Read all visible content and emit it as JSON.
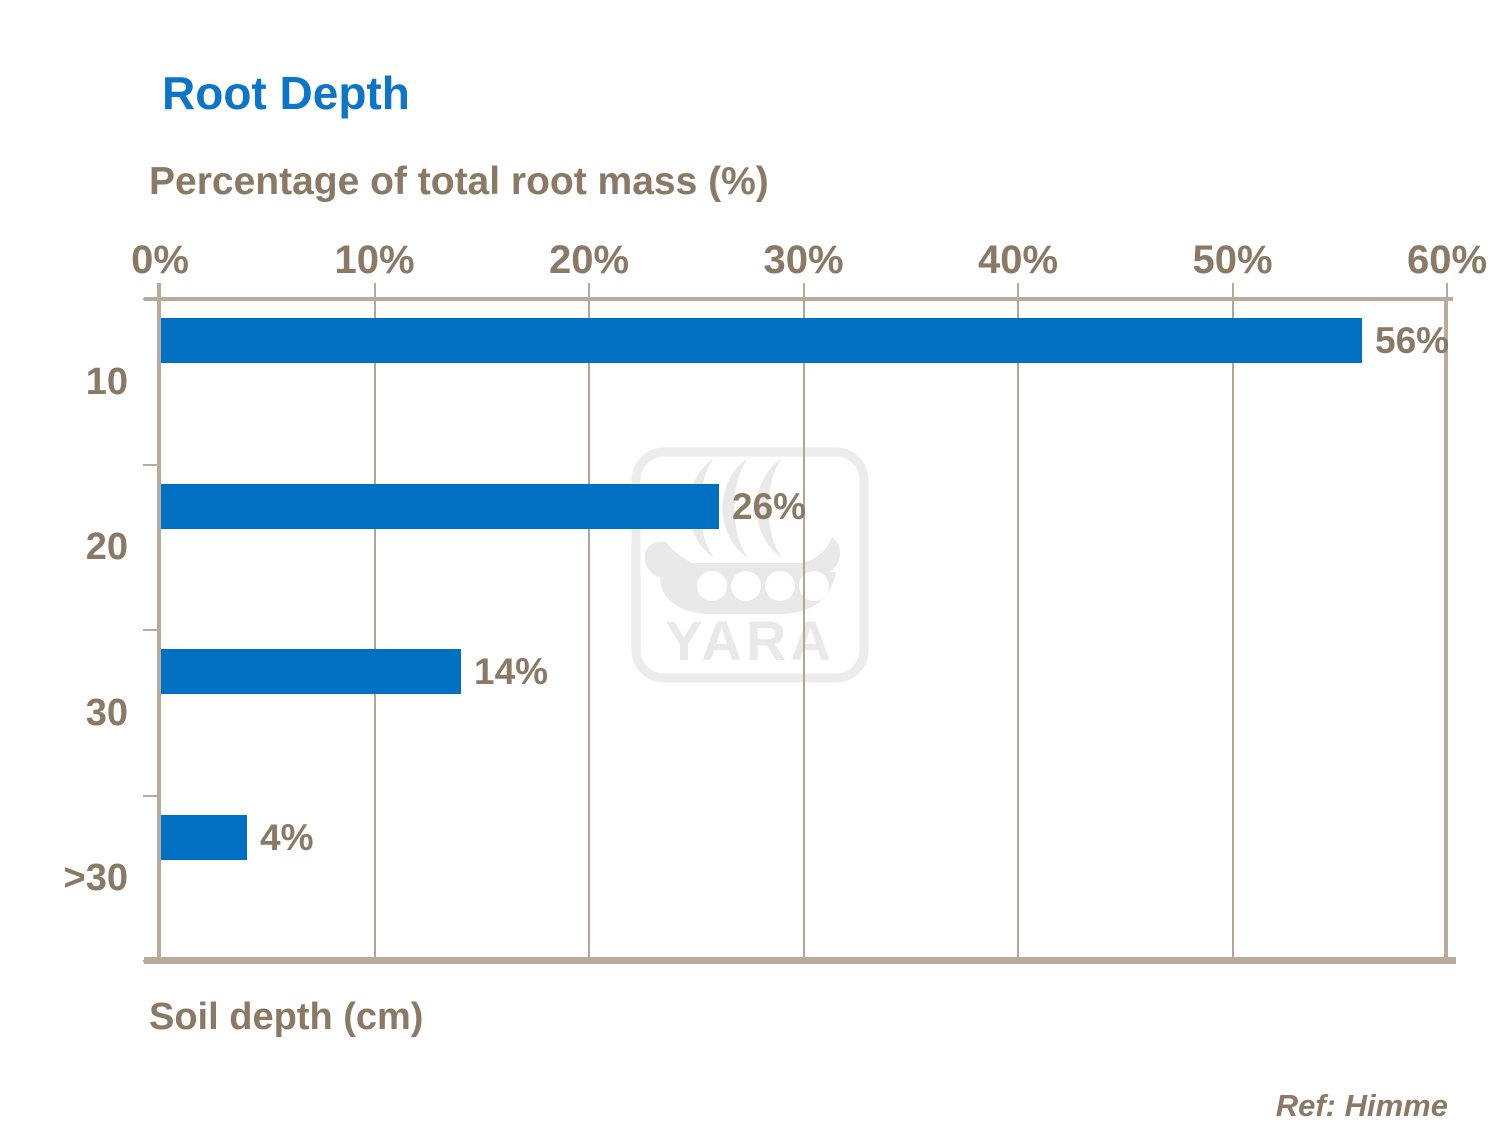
{
  "page": {
    "footer_ref": "Ref: Himme"
  },
  "watermark": {
    "label": "YARA",
    "icon": "yara-viking-ship-logo"
  },
  "colors": {
    "bar": "#0071C2",
    "title": "#0D75C8",
    "text": "#8A7A65",
    "axis": "#B8AB9B",
    "grid": "#B2A596",
    "watermark": "#E9E9EA",
    "watermark_border": "#ECECEC"
  },
  "chart_data": {
    "type": "bar",
    "orientation": "horizontal",
    "title": "Root Depth",
    "axis_title_top": "Percentage of total root mass (%)",
    "axis_title_bottom": "Soil depth (cm)",
    "categories": [
      "10",
      "20",
      "30",
      ">30"
    ],
    "values": [
      56,
      26,
      14,
      4
    ],
    "value_labels": [
      "56%",
      "26%",
      "14%",
      "4%"
    ],
    "x_ticks": [
      "0%",
      "10%",
      "20%",
      "30%",
      "40%",
      "50%",
      "60%"
    ],
    "xlim": [
      0,
      60
    ],
    "grid": "vertical-gridlines-on",
    "legend": "none",
    "value_label_position": "end-of-bar"
  }
}
